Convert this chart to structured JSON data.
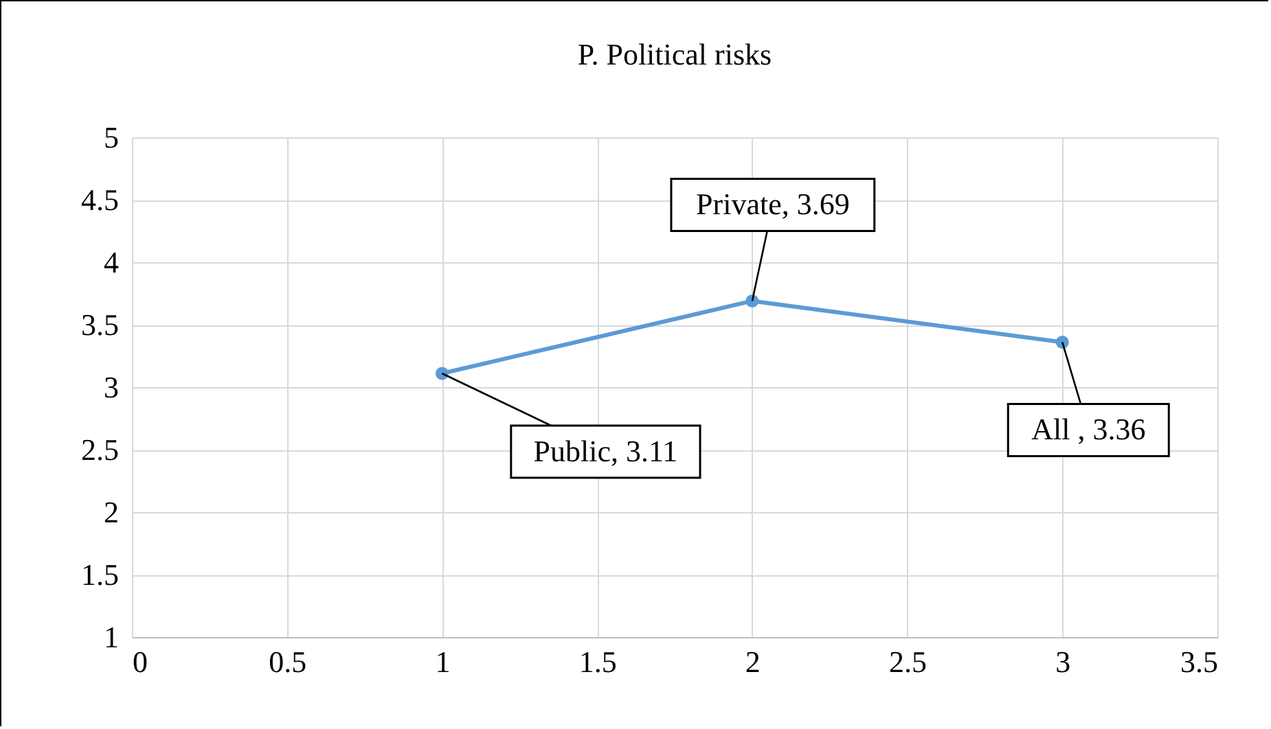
{
  "chart_data": {
    "type": "line",
    "title": "P. Political risks",
    "x": [
      1,
      2,
      3
    ],
    "series": [
      {
        "color": "#5b9bd5",
        "values": [
          3.11,
          3.69,
          3.36
        ]
      }
    ],
    "xlim": [
      0,
      3.5
    ],
    "xticks": [
      0,
      0.5,
      1,
      1.5,
      2,
      2.5,
      3,
      3.5
    ],
    "ylim": [
      1,
      5
    ],
    "yticks": [
      1,
      1.5,
      2,
      2.5,
      3,
      3.5,
      4,
      4.5,
      5
    ],
    "grid": true,
    "marker": "circle",
    "line_style": "solid",
    "annotations": [
      {
        "text": "Public, 3.11",
        "x": 1,
        "y": 3.11
      },
      {
        "text": "Private, 3.69",
        "x": 2,
        "y": 3.69
      },
      {
        "text": "All , 3.36",
        "x": 3,
        "y": 3.36
      }
    ]
  }
}
